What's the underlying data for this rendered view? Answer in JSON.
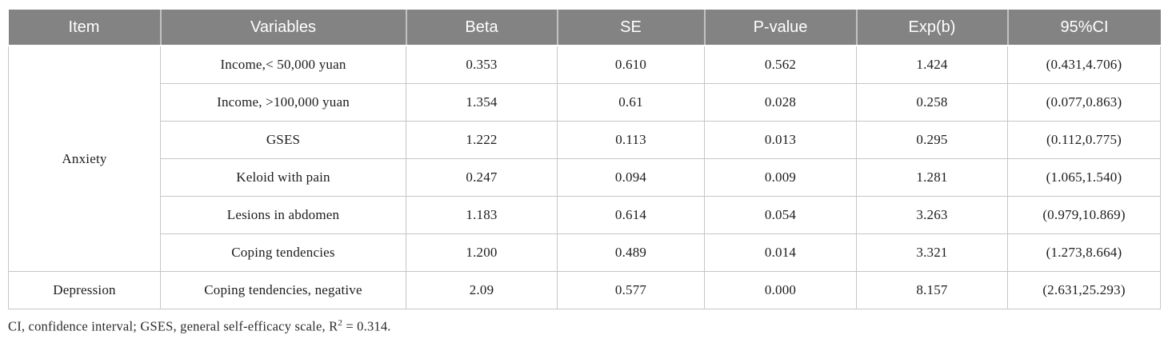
{
  "colors": {
    "header_background": "#838383",
    "header_text": "#ffffff",
    "body_border": "#c6c6c6",
    "body_text": "#1c1c1c"
  },
  "table": {
    "headers": [
      "Item",
      "Variables",
      "Beta",
      "SE",
      "P-value",
      "Exp(b)",
      "95%CI"
    ],
    "groups": [
      {
        "item": "Anxiety",
        "rows": [
          [
            "Income,< 50,000 yuan",
            "0.353",
            "0.610",
            "0.562",
            "1.424",
            "(0.431,4.706)"
          ],
          [
            "Income, >100,000 yuan",
            "1.354",
            "0.61",
            "0.028",
            "0.258",
            "(0.077,0.863)"
          ],
          [
            "GSES",
            "1.222",
            "0.113",
            "0.013",
            "0.295",
            "(0.112,0.775)"
          ],
          [
            "Keloid with pain",
            "0.247",
            "0.094",
            "0.009",
            "1.281",
            "(1.065,1.540)"
          ],
          [
            "Lesions in abdomen",
            "1.183",
            "0.614",
            "0.054",
            "3.263",
            "(0.979,10.869)"
          ],
          [
            "Coping tendencies",
            "1.200",
            "0.489",
            "0.014",
            "3.321",
            "(1.273,8.664)"
          ]
        ]
      },
      {
        "item": "Depression",
        "rows": [
          [
            "Coping tendencies, negative",
            "2.09",
            "0.577",
            "0.000",
            "8.157",
            "(2.631,25.293)"
          ]
        ]
      }
    ]
  },
  "footnote": {
    "text_before_sup": "CI, confidence interval; GSES, general self-efficacy scale, R",
    "sup": "2",
    "text_after_sup": " = 0.314."
  }
}
